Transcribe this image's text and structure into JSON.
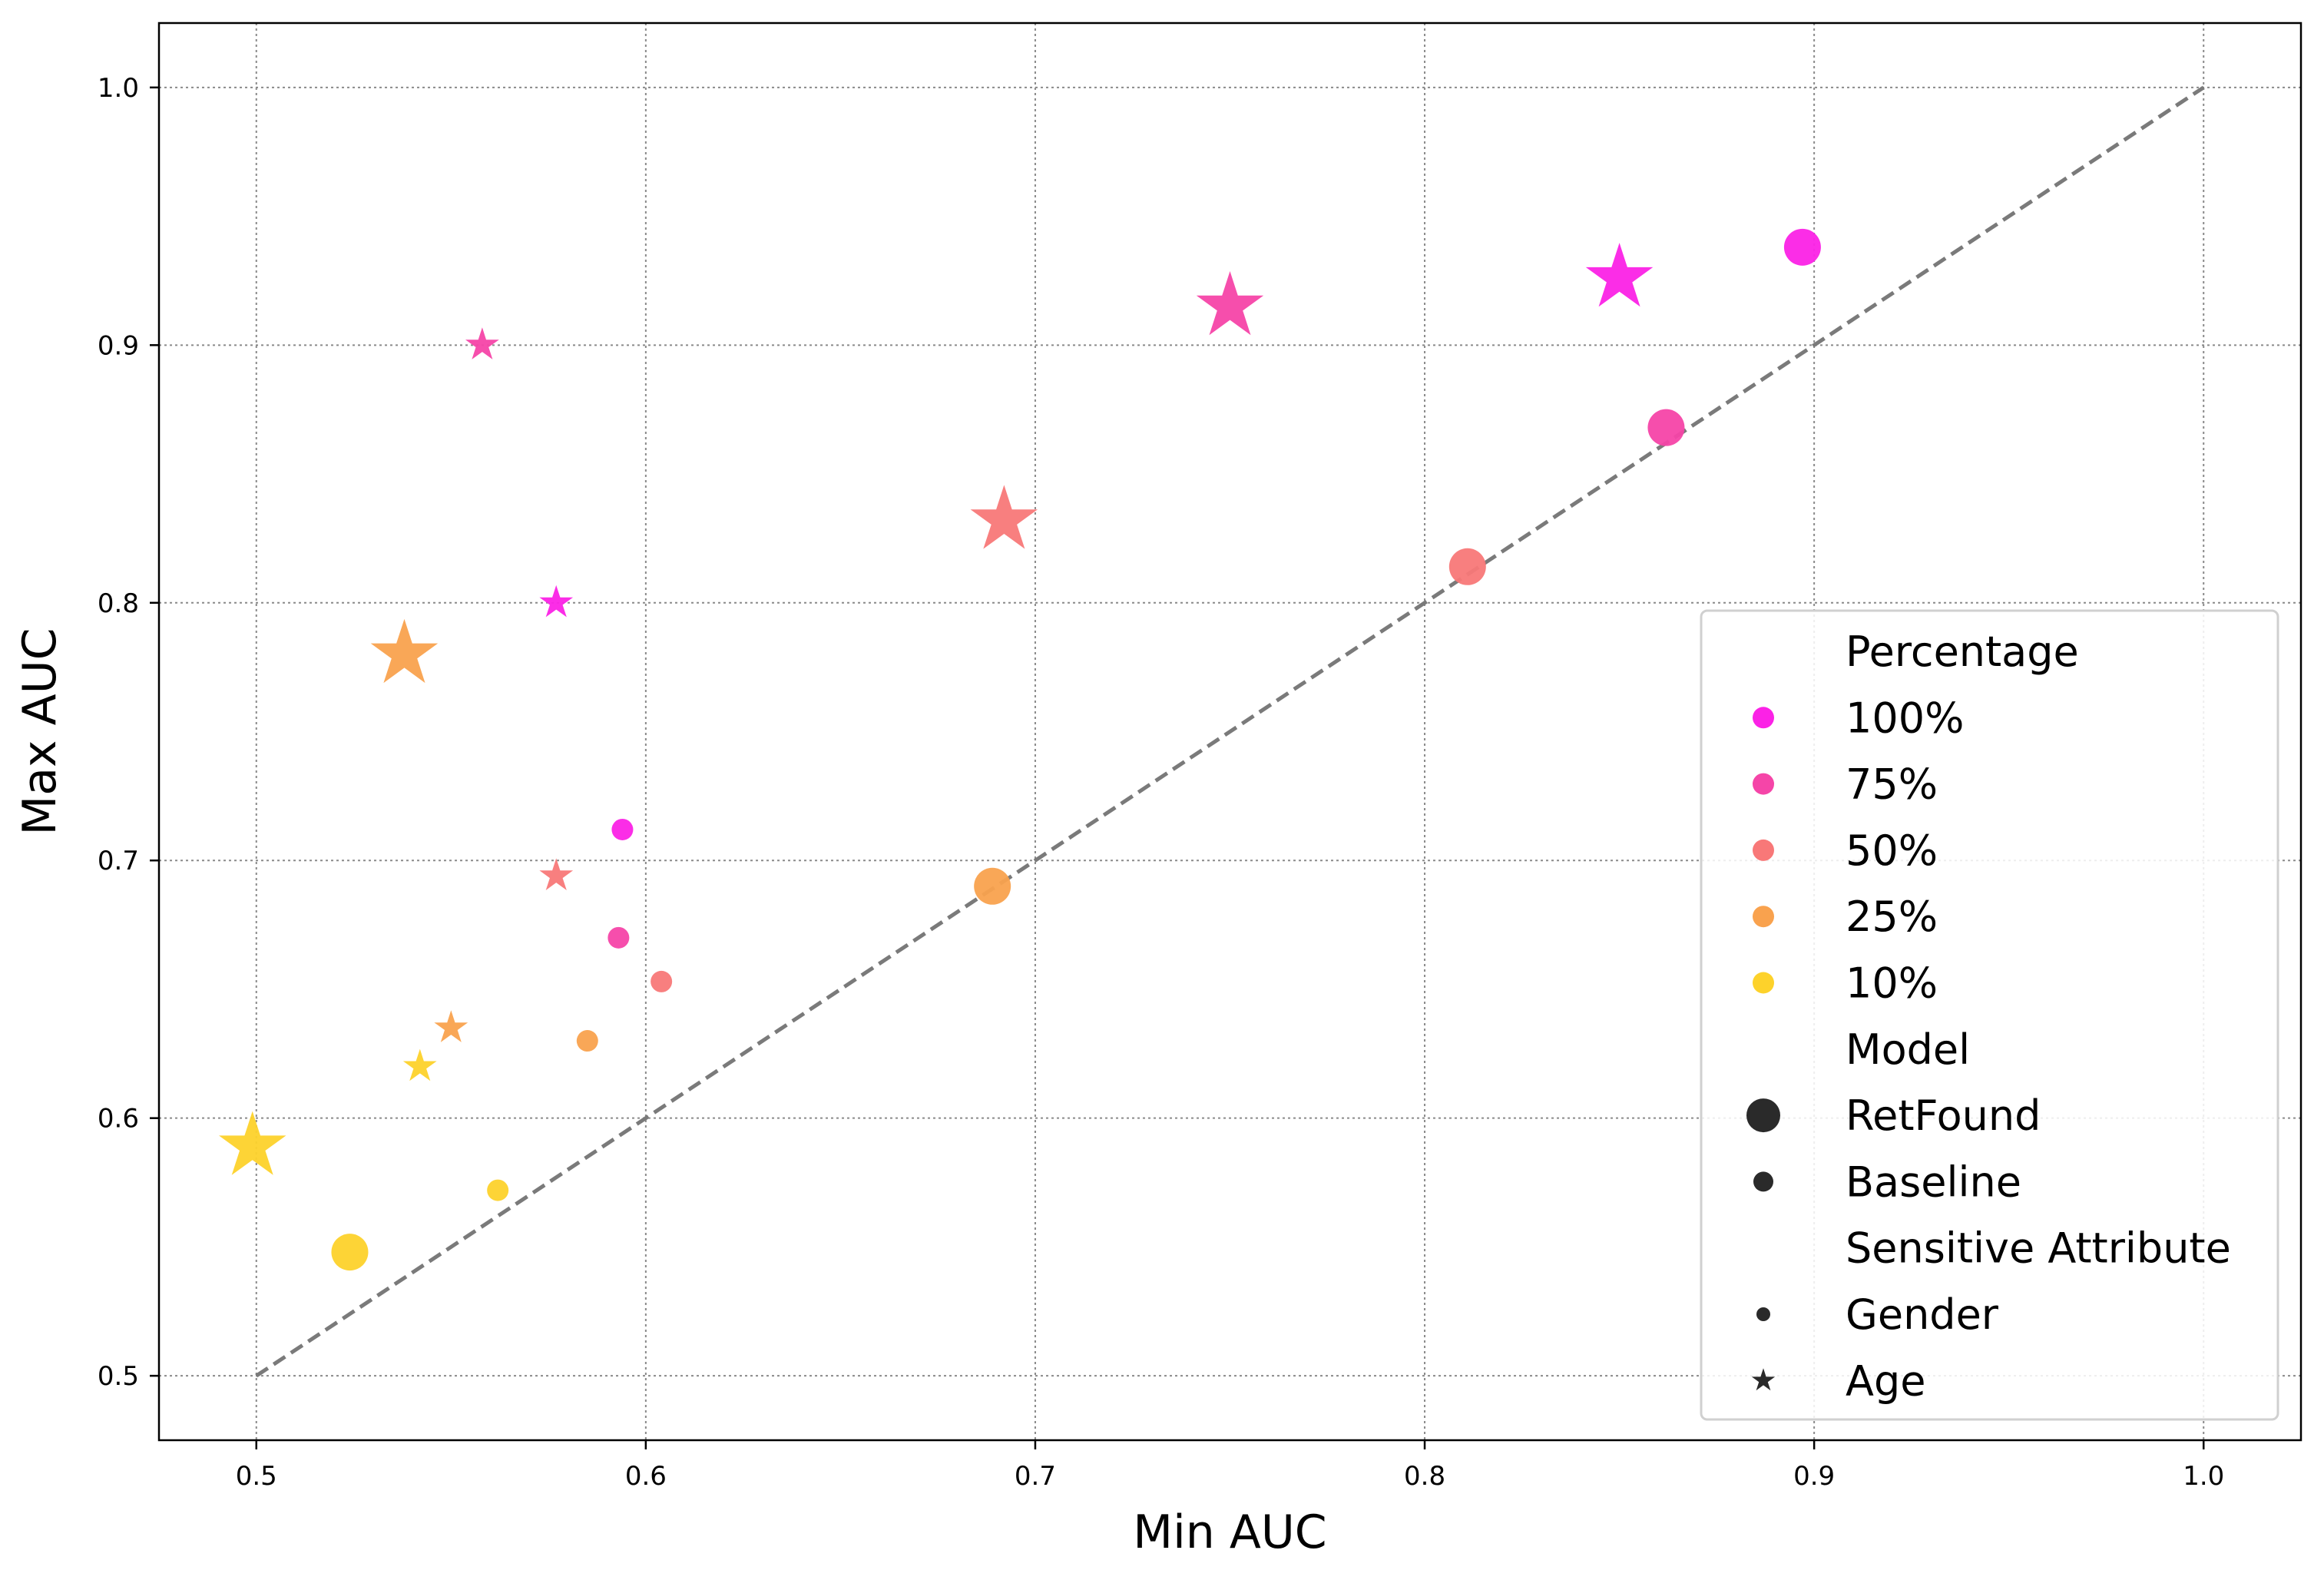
{
  "chart_data": {
    "type": "scatter",
    "title": "",
    "xlabel": "Min AUC",
    "ylabel": "Max AUC",
    "xlim": [
      0.475,
      1.025
    ],
    "ylim": [
      0.475,
      1.025
    ],
    "xticks": [
      "0.5",
      "0.6",
      "0.7",
      "0.8",
      "0.9",
      "1.0"
    ],
    "yticks": [
      "0.5",
      "0.6",
      "0.7",
      "0.8",
      "0.9",
      "1.0"
    ],
    "grid": true,
    "grid_style": "dotted",
    "reference_line": {
      "from": [
        0.5,
        0.5
      ],
      "to": [
        1.0,
        1.0
      ],
      "style": "dashed",
      "color": "#7a7a7a"
    },
    "colors": {
      "100%": "#fb22e6",
      "75%": "#f545a8",
      "50%": "#f87878",
      "25%": "#f9a24e",
      "10%": "#fdd22b"
    },
    "points": [
      {
        "x": 0.897,
        "y": 0.938,
        "percentage": "100%",
        "model": "RetFound",
        "attribute": "Gender"
      },
      {
        "x": 0.862,
        "y": 0.868,
        "percentage": "75%",
        "model": "RetFound",
        "attribute": "Gender"
      },
      {
        "x": 0.811,
        "y": 0.814,
        "percentage": "50%",
        "model": "RetFound",
        "attribute": "Gender"
      },
      {
        "x": 0.689,
        "y": 0.69,
        "percentage": "25%",
        "model": "RetFound",
        "attribute": "Gender"
      },
      {
        "x": 0.524,
        "y": 0.548,
        "percentage": "10%",
        "model": "RetFound",
        "attribute": "Gender"
      },
      {
        "x": 0.85,
        "y": 0.926,
        "percentage": "100%",
        "model": "RetFound",
        "attribute": "Age"
      },
      {
        "x": 0.75,
        "y": 0.915,
        "percentage": "75%",
        "model": "RetFound",
        "attribute": "Age"
      },
      {
        "x": 0.692,
        "y": 0.832,
        "percentage": "50%",
        "model": "RetFound",
        "attribute": "Age"
      },
      {
        "x": 0.538,
        "y": 0.78,
        "percentage": "25%",
        "model": "RetFound",
        "attribute": "Age"
      },
      {
        "x": 0.499,
        "y": 0.589,
        "percentage": "10%",
        "model": "RetFound",
        "attribute": "Age"
      },
      {
        "x": 0.594,
        "y": 0.712,
        "percentage": "100%",
        "model": "Baseline",
        "attribute": "Gender"
      },
      {
        "x": 0.593,
        "y": 0.67,
        "percentage": "75%",
        "model": "Baseline",
        "attribute": "Gender"
      },
      {
        "x": 0.604,
        "y": 0.653,
        "percentage": "50%",
        "model": "Baseline",
        "attribute": "Gender"
      },
      {
        "x": 0.585,
        "y": 0.63,
        "percentage": "25%",
        "model": "Baseline",
        "attribute": "Gender"
      },
      {
        "x": 0.562,
        "y": 0.572,
        "percentage": "10%",
        "model": "Baseline",
        "attribute": "Gender"
      },
      {
        "x": 0.577,
        "y": 0.8,
        "percentage": "100%",
        "model": "Baseline",
        "attribute": "Age"
      },
      {
        "x": 0.558,
        "y": 0.9,
        "percentage": "75%",
        "model": "Baseline",
        "attribute": "Age"
      },
      {
        "x": 0.577,
        "y": 0.694,
        "percentage": "50%",
        "model": "Baseline",
        "attribute": "Age"
      },
      {
        "x": 0.55,
        "y": 0.635,
        "percentage": "25%",
        "model": "Baseline",
        "attribute": "Age"
      },
      {
        "x": 0.542,
        "y": 0.62,
        "percentage": "10%",
        "model": "Baseline",
        "attribute": "Age"
      }
    ],
    "legend": {
      "placement": "lower-right",
      "entries": [
        {
          "label": "Percentage",
          "kind": "header"
        },
        {
          "label": "100%",
          "kind": "color",
          "percentage": "100%"
        },
        {
          "label": "75%",
          "kind": "color",
          "percentage": "75%"
        },
        {
          "label": "50%",
          "kind": "color",
          "percentage": "50%"
        },
        {
          "label": "25%",
          "kind": "color",
          "percentage": "25%"
        },
        {
          "label": "10%",
          "kind": "color",
          "percentage": "10%"
        },
        {
          "label": "Model",
          "kind": "header"
        },
        {
          "label": "RetFound",
          "kind": "size",
          "model": "RetFound"
        },
        {
          "label": "Baseline",
          "kind": "size",
          "model": "Baseline"
        },
        {
          "label": "Sensitive Attribute",
          "kind": "header"
        },
        {
          "label": "Gender",
          "kind": "shape",
          "attribute": "Gender"
        },
        {
          "label": "Age",
          "kind": "shape",
          "attribute": "Age"
        }
      ]
    }
  }
}
